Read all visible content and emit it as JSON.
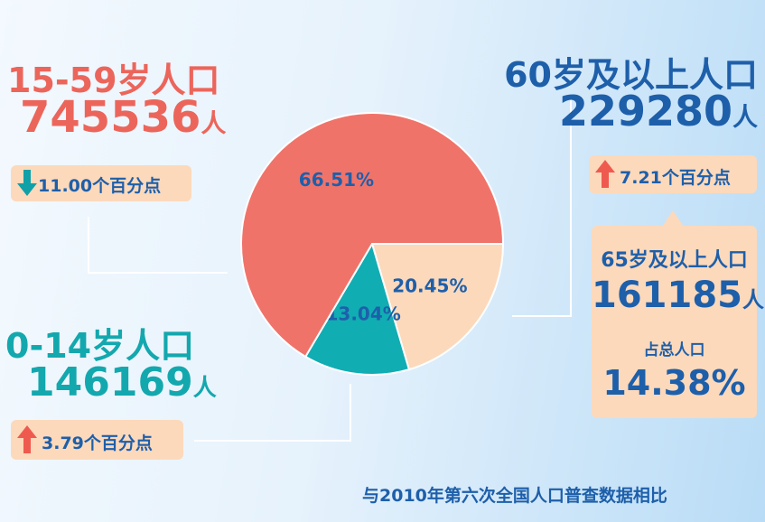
{
  "chart_data": {
    "type": "pie",
    "categories": [
      "60岁及以上人口",
      "0-14岁人口",
      "15-59岁人口"
    ],
    "values": [
      20.45,
      13.04,
      66.51
    ],
    "value_labels": [
      "20.45%",
      "13.04%",
      "66.51%"
    ],
    "colors": [
      "#fcd9bb",
      "#10adb3",
      "#f0736a"
    ]
  },
  "panels": {
    "working_age": {
      "title": "15-59岁人口",
      "count": 745536,
      "unit": "人",
      "change": "11.00个百分点"
    },
    "children": {
      "title": "0-14岁人口",
      "count": 146169,
      "unit": "人",
      "change": "3.79个百分点"
    },
    "elderly": {
      "title": "60岁及以上人口",
      "count": 229280,
      "unit": "人",
      "change": "7.21个百分点",
      "sub_title": "65岁及以上人口",
      "sub_count": 161185,
      "sub_unit": "人",
      "share_label": "占总人口",
      "share": "14.38%"
    }
  },
  "footer": "与2010年第六次全国人口普查数据相比"
}
